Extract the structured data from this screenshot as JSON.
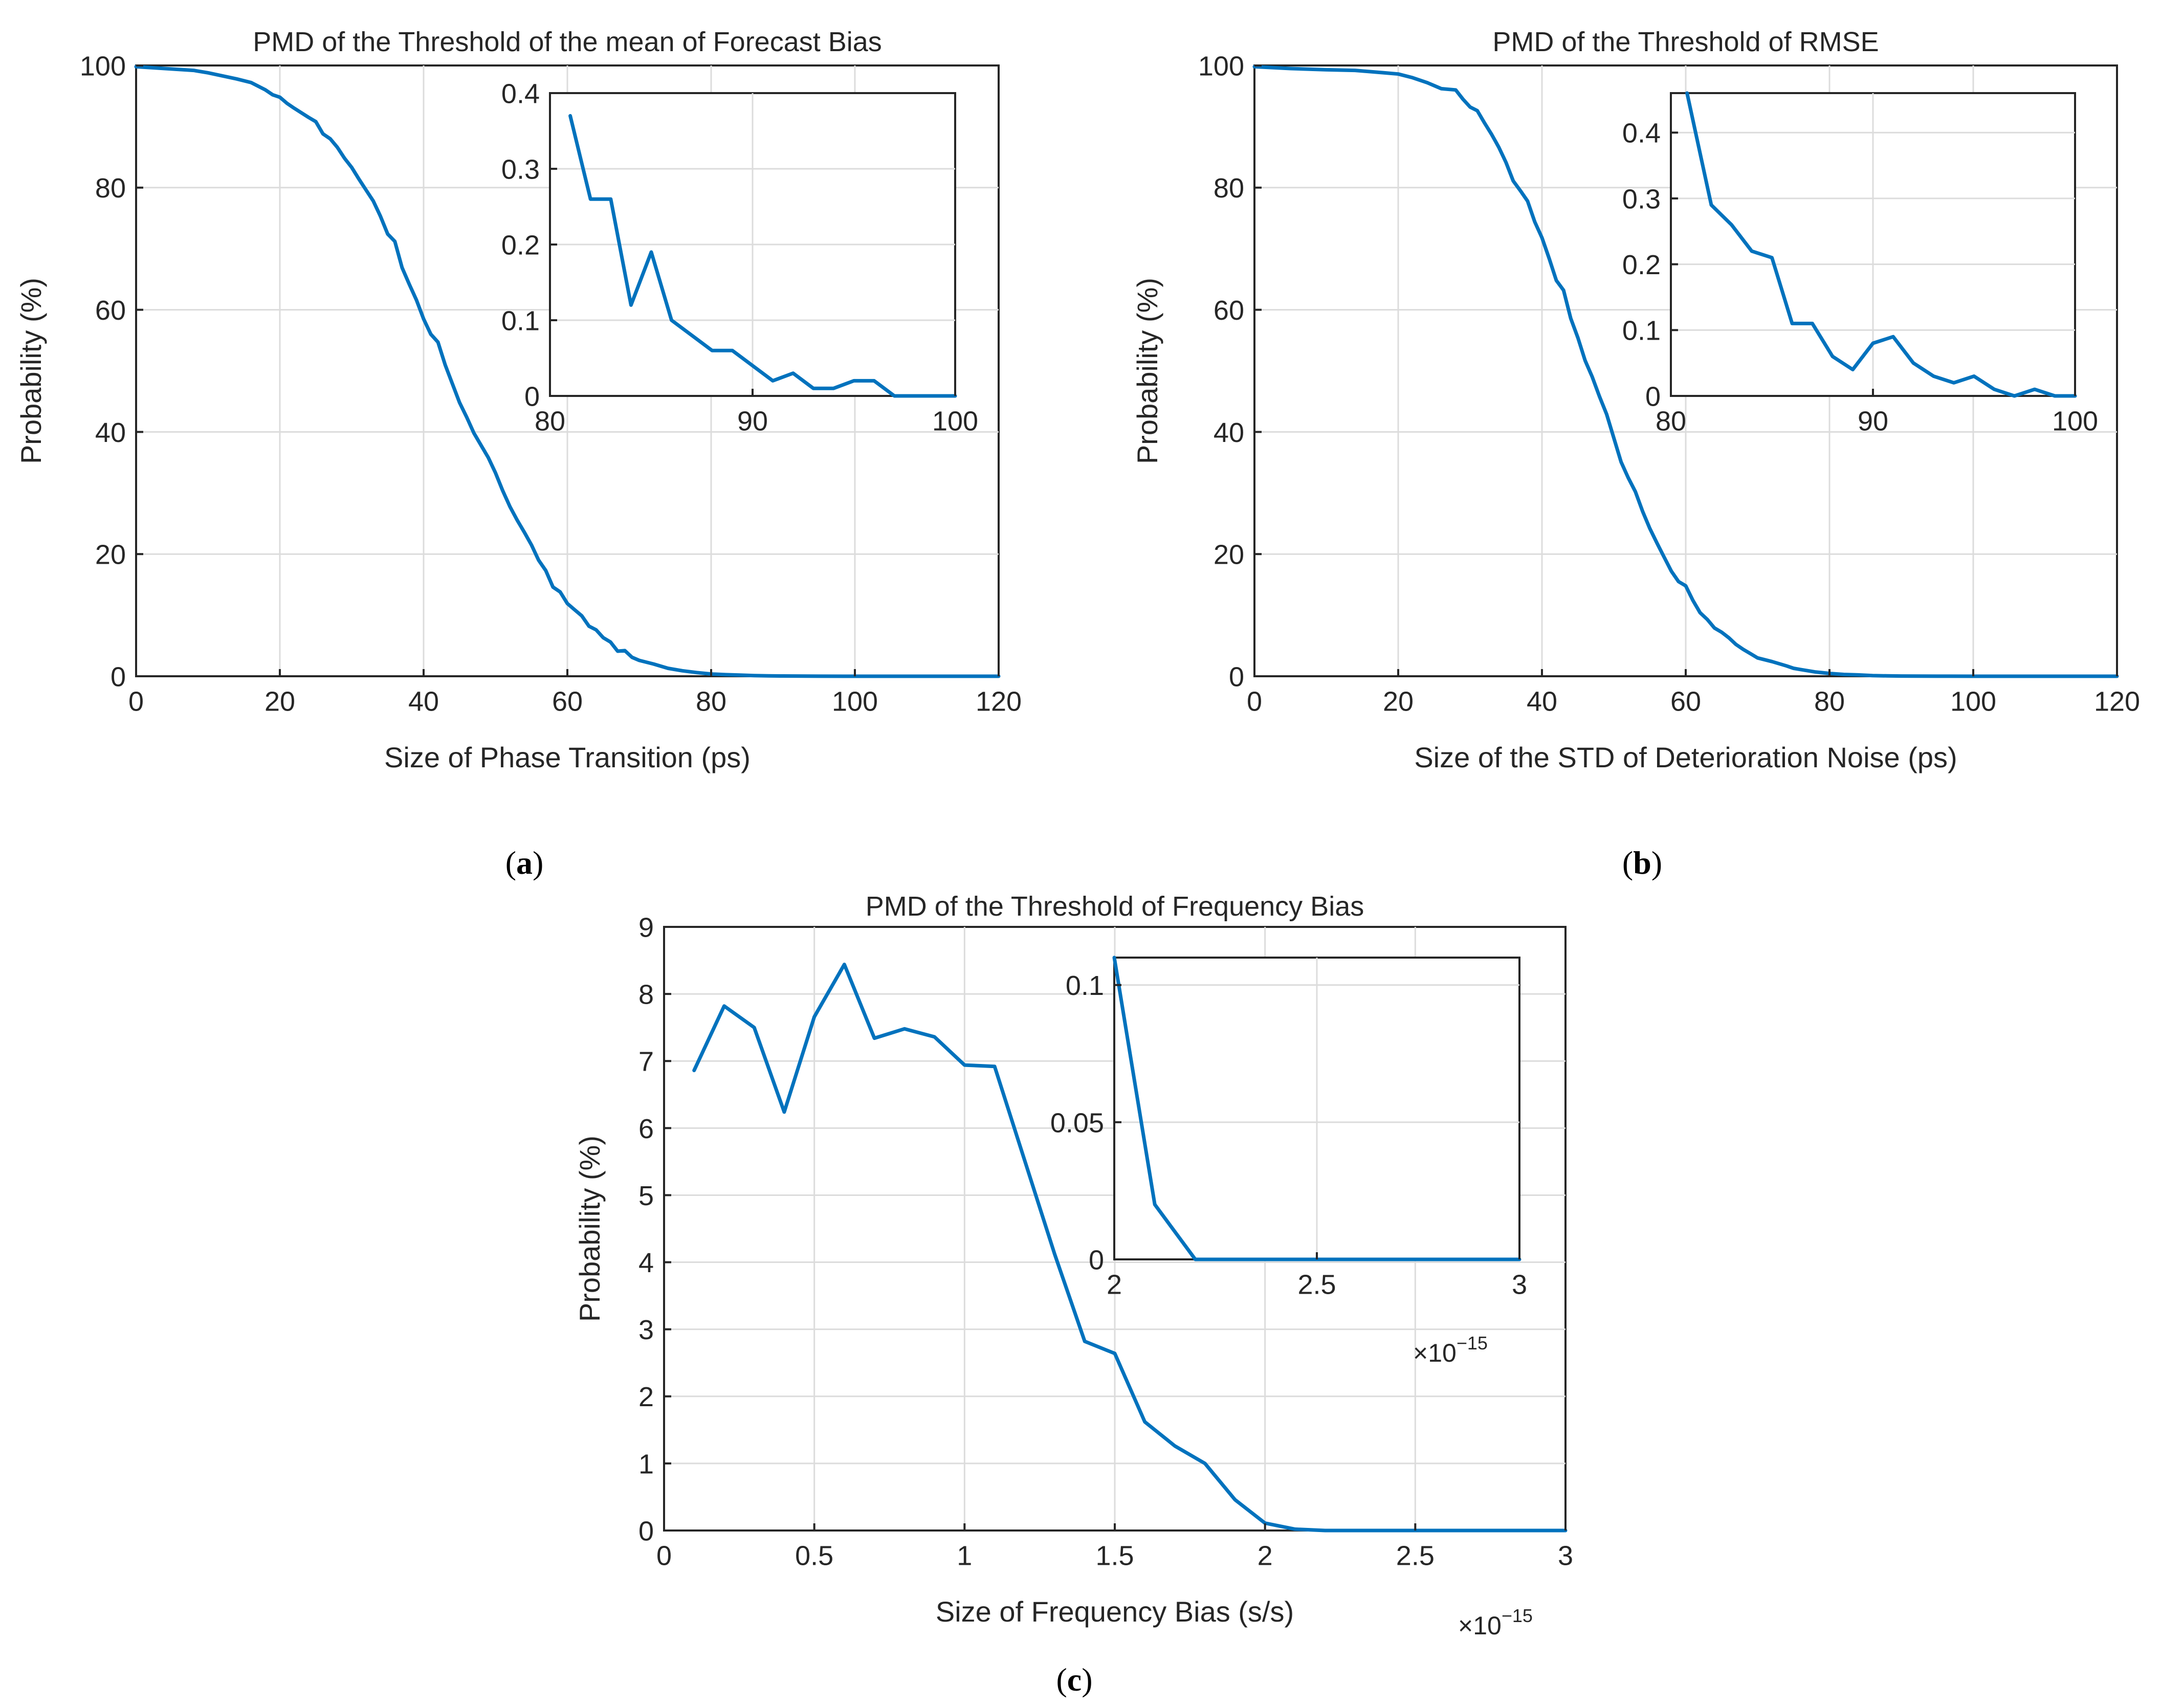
{
  "chart_data": [
    {
      "type": "line",
      "panel": "a",
      "title": "PMD of the Threshold of the mean of Forecast Bias",
      "xlabel": "Size of Phase Transition (ps)",
      "ylabel": "Probability (%)",
      "caption": "a",
      "xlim": [
        0,
        120
      ],
      "ylim": [
        0,
        100
      ],
      "xticks": [
        0,
        20,
        40,
        60,
        80,
        100,
        120
      ],
      "yticks": [
        0,
        20,
        40,
        60,
        80,
        100
      ],
      "xtick_labels": [
        "0",
        "20",
        "40",
        "60",
        "80",
        "100",
        "120"
      ],
      "ytick_labels": [
        "0",
        "20",
        "40",
        "60",
        "80",
        "100"
      ],
      "grid": true,
      "series": [
        {
          "name": "PMD",
          "color": "#0072BD",
          "x": [
            0,
            4,
            8,
            10,
            12,
            14,
            16,
            18,
            19,
            20,
            21,
            22,
            24,
            25,
            26,
            27,
            28,
            29,
            30,
            31,
            32,
            33,
            34,
            35,
            36,
            37,
            38,
            39,
            40,
            41,
            42,
            43,
            44,
            45,
            46,
            47,
            48,
            49,
            50,
            51,
            52,
            53,
            54,
            55,
            56,
            57,
            58,
            59,
            60,
            61,
            62,
            63,
            64,
            65,
            66,
            67,
            68,
            69,
            70,
            72,
            74,
            76,
            78,
            80,
            82,
            84,
            86,
            88,
            90,
            95,
            100,
            105,
            110,
            120
          ],
          "y": [
            99.8,
            99.5,
            99.2,
            98.8,
            98.3,
            97.8,
            97.2,
            96.0,
            95.2,
            94.8,
            93.8,
            93.0,
            91.5,
            90.8,
            88.8,
            88.0,
            86.6,
            84.8,
            83.3,
            81.4,
            79.6,
            77.8,
            75.3,
            72.4,
            71.2,
            66.9,
            64.2,
            61.6,
            58.5,
            56.0,
            54.7,
            51.0,
            47.9,
            44.8,
            42.4,
            39.8,
            37.8,
            35.8,
            33.3,
            30.4,
            27.8,
            25.6,
            23.6,
            21.5,
            19.0,
            17.3,
            14.6,
            13.8,
            11.9,
            10.9,
            9.9,
            8.2,
            7.6,
            6.3,
            5.6,
            4.1,
            4.2,
            3.1,
            2.6,
            2.0,
            1.3,
            0.9,
            0.6,
            0.37,
            0.26,
            0.19,
            0.1,
            0.06,
            0.04,
            0.01,
            0.0,
            0.0,
            0.0,
            0.0
          ]
        }
      ],
      "inset": {
        "xlim": [
          80,
          100
        ],
        "ylim": [
          0,
          0.4
        ],
        "xticks": [
          80,
          90,
          100
        ],
        "yticks": [
          0,
          0.1,
          0.2,
          0.3,
          0.4
        ],
        "xtick_labels": [
          "80",
          "90",
          "100"
        ],
        "ytick_labels": [
          "0",
          "0.1",
          "0.2",
          "0.3",
          "0.4"
        ],
        "grid": true,
        "x": [
          81,
          82,
          83,
          84,
          85,
          86,
          87,
          88,
          89,
          90,
          91,
          92,
          93,
          94,
          95,
          96,
          97,
          98,
          99,
          100
        ],
        "y": [
          0.37,
          0.26,
          0.26,
          0.12,
          0.19,
          0.1,
          0.08,
          0.06,
          0.06,
          0.04,
          0.02,
          0.03,
          0.01,
          0.01,
          0.02,
          0.02,
          0.0,
          0.0,
          0.0,
          0.0
        ]
      }
    },
    {
      "type": "line",
      "panel": "b",
      "title": "PMD of the Threshold of RMSE",
      "xlabel": "Size of the STD of Deterioration Noise (ps)",
      "ylabel": "Probability (%)",
      "caption": "b",
      "xlim": [
        0,
        120
      ],
      "ylim": [
        0,
        100
      ],
      "xticks": [
        0,
        20,
        40,
        60,
        80,
        100,
        120
      ],
      "yticks": [
        0,
        20,
        40,
        60,
        80,
        100
      ],
      "xtick_labels": [
        "0",
        "20",
        "40",
        "60",
        "80",
        "100",
        "120"
      ],
      "ytick_labels": [
        "0",
        "20",
        "40",
        "60",
        "80",
        "100"
      ],
      "grid": true,
      "series": [
        {
          "name": "PMD",
          "color": "#0072BD",
          "x": [
            0,
            5,
            10,
            14,
            18,
            20,
            22,
            24,
            26,
            28,
            29,
            30,
            31,
            32,
            33,
            34,
            35,
            36,
            37,
            38,
            39,
            40,
            41,
            42,
            43,
            44,
            45,
            46,
            47,
            48,
            49,
            50,
            51,
            52,
            53,
            54,
            55,
            56,
            57,
            58,
            59,
            60,
            61,
            62,
            63,
            64,
            65,
            66,
            67,
            68,
            69,
            70,
            72,
            74,
            75,
            76,
            78,
            80,
            82,
            84,
            86,
            88,
            90,
            95,
            100,
            105,
            110,
            120
          ],
          "y": [
            99.8,
            99.5,
            99.3,
            99.2,
            98.8,
            98.6,
            98.0,
            97.2,
            96.2,
            96.0,
            94.5,
            93.2,
            92.6,
            90.6,
            88.7,
            86.6,
            84.1,
            81.1,
            79.5,
            77.8,
            74.4,
            71.8,
            68.4,
            64.8,
            63.2,
            58.6,
            55.4,
            51.7,
            49.0,
            45.8,
            42.9,
            39.0,
            35.1,
            32.5,
            30.2,
            27.0,
            24.2,
            21.8,
            19.5,
            17.2,
            15.5,
            14.8,
            12.4,
            10.4,
            9.3,
            7.9,
            7.2,
            6.3,
            5.2,
            4.4,
            3.7,
            3.0,
            2.4,
            1.7,
            1.3,
            1.1,
            0.7,
            0.46,
            0.29,
            0.22,
            0.11,
            0.06,
            0.03,
            0.01,
            0.0,
            0.0,
            0.0,
            0.0
          ]
        }
      ],
      "inset": {
        "xlim": [
          80,
          100
        ],
        "ylim": [
          0,
          0.46
        ],
        "xticks": [
          80,
          90,
          100
        ],
        "yticks": [
          0,
          0.1,
          0.2,
          0.3,
          0.4
        ],
        "xtick_labels": [
          "80",
          "90",
          "100"
        ],
        "ytick_labels": [
          "0",
          "0.1",
          "0.2",
          "0.3",
          "0.4"
        ],
        "grid": true,
        "x": [
          80.8,
          82,
          83,
          84,
          85,
          86,
          87,
          88,
          89,
          90,
          91,
          92,
          93,
          94,
          95,
          96,
          97,
          98,
          99,
          100
        ],
        "y": [
          0.46,
          0.29,
          0.26,
          0.22,
          0.21,
          0.11,
          0.11,
          0.06,
          0.04,
          0.08,
          0.09,
          0.05,
          0.03,
          0.02,
          0.03,
          0.01,
          0.0,
          0.01,
          0.0,
          0.0
        ]
      }
    },
    {
      "type": "line",
      "panel": "c",
      "title": "PMD of the Threshold of Frequency Bias",
      "xlabel": "Size of Frequency Bias (s/s)",
      "ylabel": "Probability (%)",
      "caption": "c",
      "x_multiplier": "×10",
      "x_multiplier_exp": "−15",
      "xlim": [
        0,
        3
      ],
      "ylim": [
        0,
        9
      ],
      "xticks": [
        0,
        0.5,
        1,
        1.5,
        2,
        2.5,
        3
      ],
      "yticks": [
        0,
        1,
        2,
        3,
        4,
        5,
        6,
        7,
        8,
        9
      ],
      "xtick_labels": [
        "0",
        "0.5",
        "1",
        "1.5",
        "2",
        "2.5",
        "3"
      ],
      "ytick_labels": [
        "0",
        "1",
        "2",
        "3",
        "4",
        "5",
        "6",
        "7",
        "8",
        "9"
      ],
      "grid": true,
      "series": [
        {
          "name": "PMD",
          "color": "#0072BD",
          "x": [
            0.1,
            0.2,
            0.3,
            0.4,
            0.5,
            0.6,
            0.7,
            0.8,
            0.9,
            1.0,
            1.1,
            1.2,
            1.3,
            1.4,
            1.5,
            1.6,
            1.7,
            1.8,
            1.9,
            2.0,
            2.1,
            2.2,
            2.3,
            2.4,
            2.5,
            2.6,
            2.7,
            2.8,
            2.9,
            3.0
          ],
          "y": [
            6.86,
            7.82,
            7.5,
            6.24,
            7.66,
            8.44,
            7.34,
            7.48,
            7.36,
            6.94,
            6.92,
            5.52,
            4.12,
            2.82,
            2.64,
            1.62,
            1.26,
            1.0,
            0.46,
            0.11,
            0.02,
            0.0,
            0.0,
            0.0,
            0.0,
            0.0,
            0.0,
            0.0,
            0.0,
            0.0
          ]
        }
      ],
      "inset": {
        "xlim": [
          2,
          3
        ],
        "ylim": [
          0,
          0.11
        ],
        "xticks": [
          2,
          2.5,
          3
        ],
        "yticks": [
          0,
          0.05,
          0.1
        ],
        "xtick_labels": [
          "2",
          "2.5",
          "3"
        ],
        "ytick_labels": [
          "0",
          "0.05",
          "0.1"
        ],
        "grid": true,
        "x_multiplier": "×10",
        "x_multiplier_exp": "−15",
        "x": [
          2.0,
          2.1,
          2.2,
          2.3,
          2.4,
          2.5,
          2.6,
          2.7,
          2.8,
          2.9,
          3.0
        ],
        "y": [
          0.11,
          0.02,
          0.0,
          0.0,
          0.0,
          0.0,
          0.0,
          0.0,
          0.0,
          0.0,
          0.0
        ]
      }
    }
  ]
}
